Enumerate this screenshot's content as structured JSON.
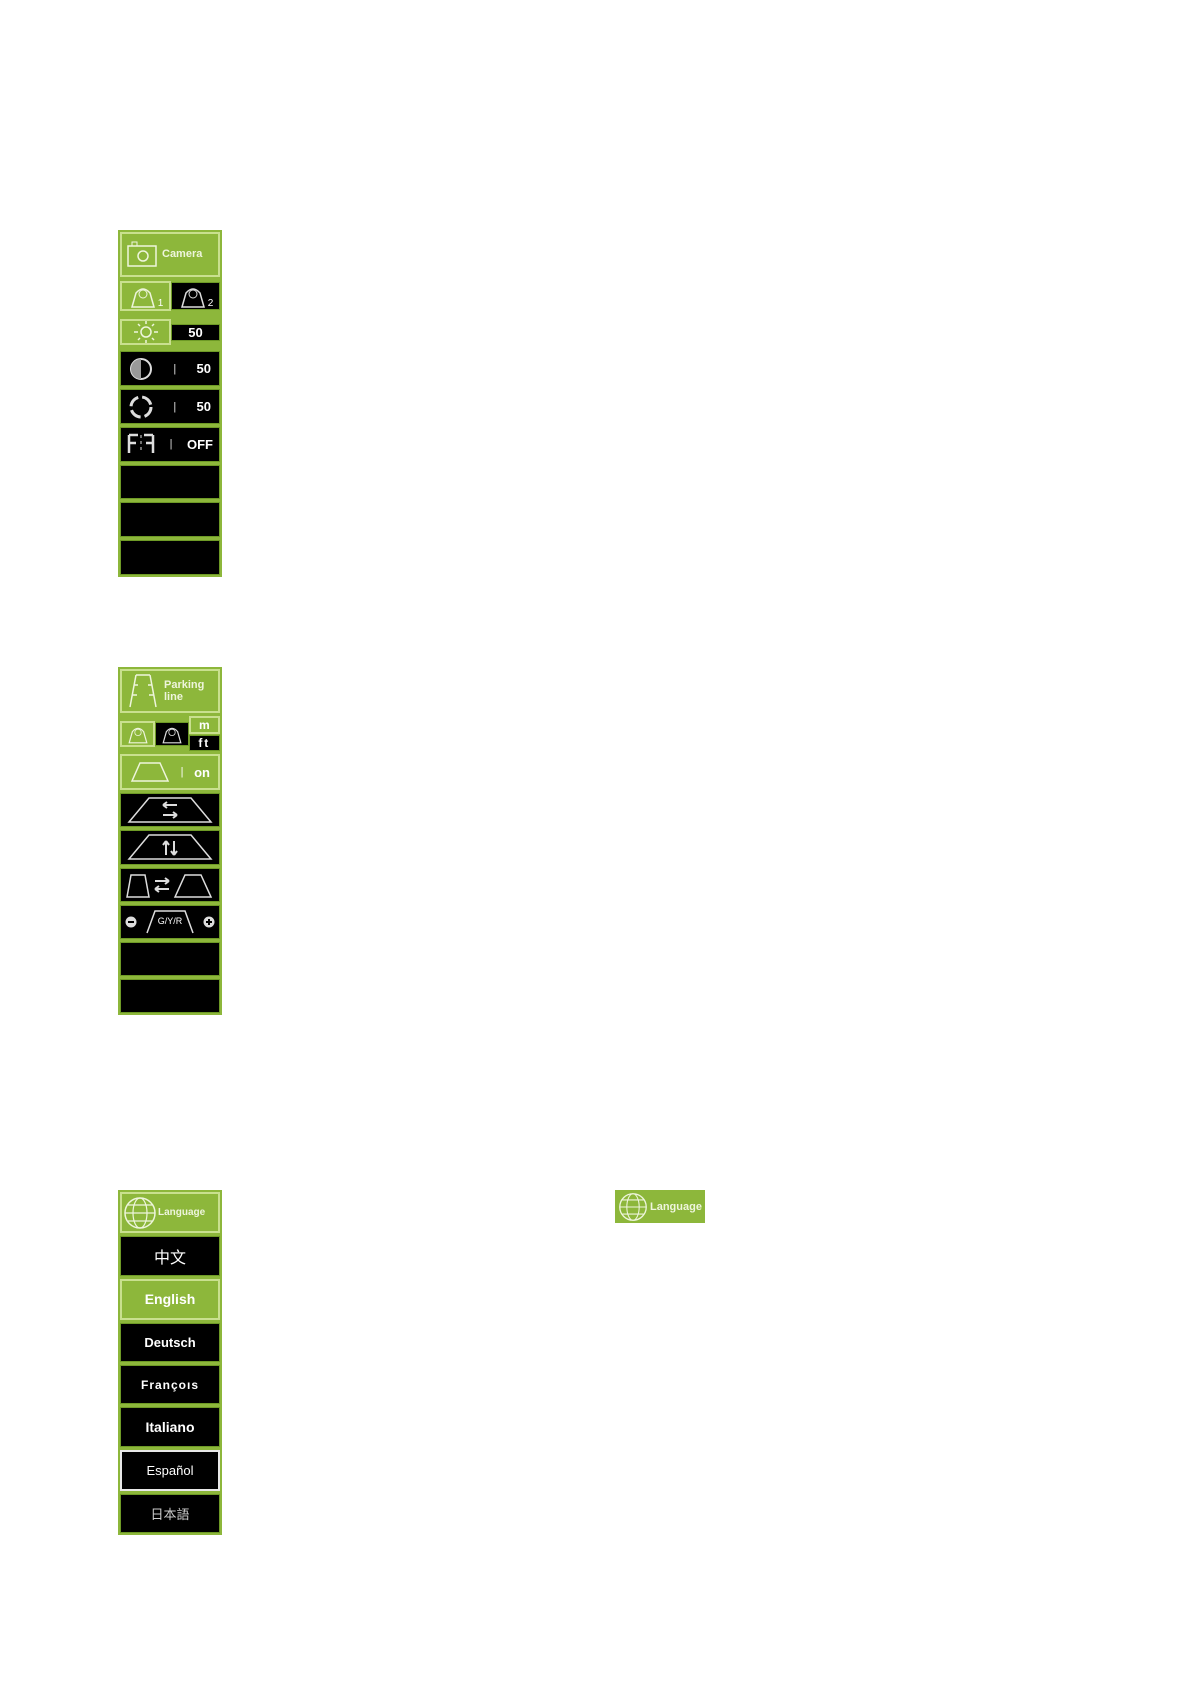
{
  "colors": {
    "accent": "#8db73b",
    "background": "#000000",
    "text": "#ffffff"
  },
  "camera_panel": {
    "title": "Camera",
    "camera1_label": "1",
    "camera2_label": "2",
    "rows": [
      {
        "icon": "brightness-icon",
        "value": "50"
      },
      {
        "icon": "contrast-icon",
        "value": "50"
      },
      {
        "icon": "saturation-icon",
        "value": "50"
      },
      {
        "icon": "mirror-icon",
        "value": "OFF"
      }
    ]
  },
  "parking_panel": {
    "title_line1": "Parking",
    "title_line2": "line",
    "unit_m": "m",
    "unit_ft": "ft",
    "toggle_value": "on",
    "gyr_label": "G/Y/R"
  },
  "language_panel": {
    "title": "Language",
    "options": [
      "中文",
      "English",
      "Deutsch",
      "Françoıs",
      "Italiano",
      "Español",
      "日本語"
    ],
    "selected": "English"
  },
  "language_badge": {
    "title": "Language"
  }
}
